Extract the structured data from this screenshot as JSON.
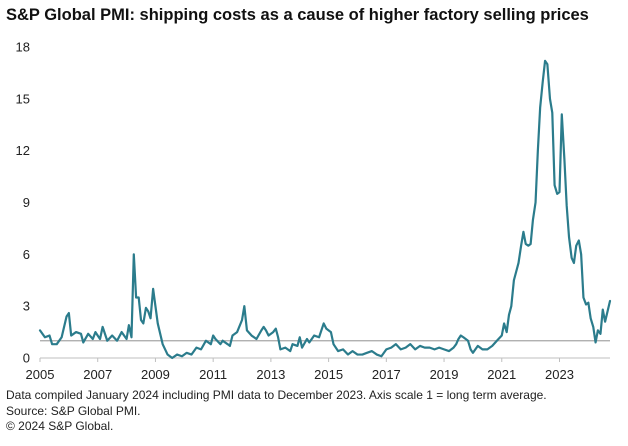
{
  "chart_data": {
    "type": "line",
    "title": "S&P Global PMI: shipping costs as a cause of higher factory selling prices",
    "xlabel": "",
    "ylabel": "",
    "xlim": [
      2005.0,
      2024.0
    ],
    "ylim": [
      0,
      18
    ],
    "x_ticks": [
      "2005",
      "2007",
      "2009",
      "2011",
      "2013",
      "2015",
      "2017",
      "2019",
      "2021",
      "2023"
    ],
    "y_ticks": [
      "0",
      "3",
      "6",
      "9",
      "12",
      "15",
      "18"
    ],
    "grid": false,
    "reference_line": {
      "y": 1,
      "color": "#a6a6a6"
    },
    "series": [
      {
        "color": "#2b7c8c",
        "points": [
          [
            2005.0,
            1.6
          ],
          [
            2005.17,
            1.2
          ],
          [
            2005.33,
            1.3
          ],
          [
            2005.42,
            0.8
          ],
          [
            2005.58,
            0.8
          ],
          [
            2005.75,
            1.2
          ],
          [
            2005.92,
            2.4
          ],
          [
            2006.0,
            2.6
          ],
          [
            2006.08,
            1.3
          ],
          [
            2006.25,
            1.5
          ],
          [
            2006.42,
            1.4
          ],
          [
            2006.5,
            0.9
          ],
          [
            2006.67,
            1.4
          ],
          [
            2006.83,
            1.1
          ],
          [
            2006.92,
            1.5
          ],
          [
            2007.08,
            1.1
          ],
          [
            2007.17,
            1.8
          ],
          [
            2007.33,
            1.0
          ],
          [
            2007.5,
            1.3
          ],
          [
            2007.67,
            1.0
          ],
          [
            2007.83,
            1.5
          ],
          [
            2008.0,
            1.1
          ],
          [
            2008.08,
            1.9
          ],
          [
            2008.17,
            1.2
          ],
          [
            2008.25,
            6.0
          ],
          [
            2008.33,
            3.5
          ],
          [
            2008.42,
            3.5
          ],
          [
            2008.5,
            2.2
          ],
          [
            2008.58,
            2.0
          ],
          [
            2008.67,
            2.9
          ],
          [
            2008.75,
            2.7
          ],
          [
            2008.83,
            2.3
          ],
          [
            2008.92,
            4.0
          ],
          [
            2009.0,
            3.0
          ],
          [
            2009.08,
            2.0
          ],
          [
            2009.25,
            0.8
          ],
          [
            2009.42,
            0.2
          ],
          [
            2009.58,
            0.0
          ],
          [
            2009.75,
            0.2
          ],
          [
            2009.92,
            0.1
          ],
          [
            2010.08,
            0.3
          ],
          [
            2010.25,
            0.2
          ],
          [
            2010.42,
            0.6
          ],
          [
            2010.58,
            0.5
          ],
          [
            2010.75,
            1.0
          ],
          [
            2010.92,
            0.8
          ],
          [
            2011.0,
            1.3
          ],
          [
            2011.08,
            1.1
          ],
          [
            2011.25,
            0.8
          ],
          [
            2011.33,
            1.0
          ],
          [
            2011.5,
            0.8
          ],
          [
            2011.58,
            0.7
          ],
          [
            2011.67,
            1.3
          ],
          [
            2011.83,
            1.5
          ],
          [
            2012.0,
            2.2
          ],
          [
            2012.08,
            3.0
          ],
          [
            2012.17,
            1.6
          ],
          [
            2012.33,
            1.3
          ],
          [
            2012.5,
            1.1
          ],
          [
            2012.67,
            1.6
          ],
          [
            2012.75,
            1.8
          ],
          [
            2012.83,
            1.6
          ],
          [
            2012.92,
            1.3
          ],
          [
            2013.08,
            1.5
          ],
          [
            2013.17,
            1.7
          ],
          [
            2013.25,
            1.2
          ],
          [
            2013.33,
            0.5
          ],
          [
            2013.5,
            0.6
          ],
          [
            2013.67,
            0.4
          ],
          [
            2013.75,
            0.8
          ],
          [
            2013.92,
            0.7
          ],
          [
            2014.0,
            1.2
          ],
          [
            2014.08,
            0.6
          ],
          [
            2014.25,
            1.1
          ],
          [
            2014.33,
            0.9
          ],
          [
            2014.5,
            1.3
          ],
          [
            2014.67,
            1.2
          ],
          [
            2014.83,
            2.0
          ],
          [
            2014.92,
            1.7
          ],
          [
            2015.08,
            1.5
          ],
          [
            2015.17,
            0.8
          ],
          [
            2015.33,
            0.4
          ],
          [
            2015.5,
            0.5
          ],
          [
            2015.67,
            0.2
          ],
          [
            2015.83,
            0.4
          ],
          [
            2016.0,
            0.2
          ],
          [
            2016.17,
            0.2
          ],
          [
            2016.33,
            0.3
          ],
          [
            2016.5,
            0.4
          ],
          [
            2016.67,
            0.2
          ],
          [
            2016.83,
            0.1
          ],
          [
            2017.0,
            0.5
          ],
          [
            2017.17,
            0.6
          ],
          [
            2017.33,
            0.8
          ],
          [
            2017.5,
            0.5
          ],
          [
            2017.67,
            0.6
          ],
          [
            2017.83,
            0.8
          ],
          [
            2018.0,
            0.5
          ],
          [
            2018.17,
            0.7
          ],
          [
            2018.33,
            0.6
          ],
          [
            2018.5,
            0.6
          ],
          [
            2018.67,
            0.5
          ],
          [
            2018.83,
            0.6
          ],
          [
            2019.0,
            0.5
          ],
          [
            2019.17,
            0.4
          ],
          [
            2019.33,
            0.6
          ],
          [
            2019.42,
            0.8
          ],
          [
            2019.5,
            1.1
          ],
          [
            2019.58,
            1.3
          ],
          [
            2019.67,
            1.2
          ],
          [
            2019.83,
            1.0
          ],
          [
            2019.92,
            0.5
          ],
          [
            2020.0,
            0.3
          ],
          [
            2020.17,
            0.7
          ],
          [
            2020.33,
            0.5
          ],
          [
            2020.5,
            0.5
          ],
          [
            2020.67,
            0.7
          ],
          [
            2020.83,
            1.0
          ],
          [
            2021.0,
            1.3
          ],
          [
            2021.08,
            2.0
          ],
          [
            2021.17,
            1.5
          ],
          [
            2021.25,
            2.5
          ],
          [
            2021.33,
            3.0
          ],
          [
            2021.42,
            4.5
          ],
          [
            2021.5,
            5.0
          ],
          [
            2021.58,
            5.5
          ],
          [
            2021.67,
            6.5
          ],
          [
            2021.75,
            7.3
          ],
          [
            2021.83,
            6.6
          ],
          [
            2021.92,
            6.5
          ],
          [
            2022.0,
            6.6
          ],
          [
            2022.08,
            8.0
          ],
          [
            2022.17,
            9.0
          ],
          [
            2022.25,
            12.0
          ],
          [
            2022.33,
            14.5
          ],
          [
            2022.42,
            16.0
          ],
          [
            2022.5,
            17.2
          ],
          [
            2022.58,
            17.0
          ],
          [
            2022.67,
            15.0
          ],
          [
            2022.75,
            14.2
          ],
          [
            2022.83,
            10.0
          ],
          [
            2022.92,
            9.5
          ],
          [
            2023.0,
            9.6
          ],
          [
            2023.08,
            14.1
          ],
          [
            2023.17,
            11.5
          ],
          [
            2023.25,
            8.8
          ],
          [
            2023.33,
            7.0
          ],
          [
            2023.42,
            5.8
          ],
          [
            2023.5,
            5.5
          ],
          [
            2023.58,
            6.5
          ],
          [
            2023.67,
            6.8
          ],
          [
            2023.75,
            6.0
          ],
          [
            2023.83,
            3.5
          ],
          [
            2023.92,
            3.1
          ],
          [
            2024.0,
            3.2
          ],
          [
            2024.08,
            2.3
          ],
          [
            2024.17,
            1.8
          ],
          [
            2024.25,
            0.9
          ],
          [
            2024.33,
            1.6
          ],
          [
            2024.42,
            1.4
          ],
          [
            2024.5,
            2.8
          ],
          [
            2024.58,
            2.1
          ],
          [
            2024.75,
            3.3
          ]
        ]
      }
    ],
    "notes": [
      "Data compiled January 2024 including PMI data to December 2023. Axis scale 1 = long term average.",
      "Source: S&P Global PMI.",
      "© 2024 S&P Global."
    ]
  }
}
